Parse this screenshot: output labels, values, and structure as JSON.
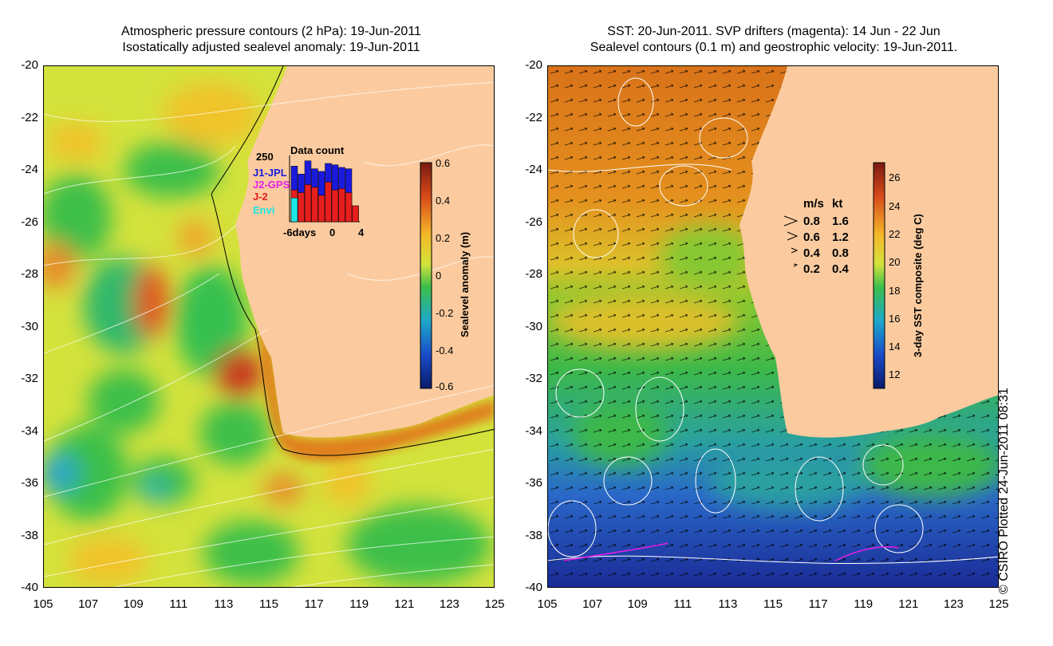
{
  "left_panel": {
    "title_line1": "Atmospheric pressure contours (2 hPa): 19-Jun-2011",
    "title_line2": "Isostatically adjusted sealevel anomaly: 19-Jun-2011",
    "colorbar": {
      "label": "Sealevel anomaly (m)",
      "ticks": [
        "0.6",
        "0.4",
        "0.2",
        "0",
        "-0.2",
        "-0.4",
        "-0.6"
      ],
      "range": [
        -0.6,
        0.6
      ]
    },
    "data_count": {
      "title": "Data count",
      "ymax_label": "250",
      "legend": [
        {
          "label": "J1-JPL",
          "color": "#1a1adc"
        },
        {
          "label": "J2-GPS",
          "color": "#e61ee6"
        },
        {
          "label": "J-2",
          "color": "#e61e1e"
        },
        {
          "label": "Envi",
          "color": "#1ee6e6"
        }
      ],
      "x_ticks": [
        "-6days",
        "0",
        "4"
      ],
      "bars_total": [
        210,
        180,
        230,
        200,
        190,
        220,
        215,
        205,
        200,
        60
      ],
      "bars_red": [
        120,
        110,
        140,
        130,
        100,
        150,
        120,
        125,
        110,
        60
      ],
      "bars_envi": [
        90,
        0,
        0,
        0,
        0,
        0,
        0,
        0,
        0,
        0
      ]
    }
  },
  "right_panel": {
    "title_line1": "SST: 20-Jun-2011. SVP drifters (magenta): 14 Jun - 22 Jun",
    "title_line2": "Sealevel contours (0.1 m) and geostrophic velocity: 19-Jun-2011.",
    "colorbar": {
      "label": "3-day SST composite (deg C)",
      "ticks": [
        "26",
        "24",
        "22",
        "20",
        "18",
        "16",
        "14",
        "12"
      ],
      "range": [
        11,
        27
      ]
    },
    "velocity_legend": {
      "header_ms": "m/s",
      "header_kt": "kt",
      "rows": [
        {
          "ms": "0.8",
          "kt": "1.6"
        },
        {
          "ms": "0.6",
          "kt": "1.2"
        },
        {
          "ms": "0.4",
          "kt": "0.8"
        },
        {
          "ms": "0.2",
          "kt": "0.4"
        }
      ]
    }
  },
  "axes": {
    "y_ticks": [
      "-20",
      "-22",
      "-24",
      "-26",
      "-28",
      "-30",
      "-32",
      "-34",
      "-36",
      "-38",
      "-40"
    ],
    "x_ticks": [
      "105",
      "107",
      "109",
      "111",
      "113",
      "115",
      "117",
      "119",
      "121",
      "123",
      "125"
    ]
  },
  "copyright": "© CSIRO Plotted 24-Jun-2011 08:31",
  "colors": {
    "land": "#fbcb9f",
    "ocean_yellow": "#d8e43a",
    "ocean_green": "#3fbf48",
    "sst_orange": "#e0861c",
    "sst_blue": "#1c3cb4"
  }
}
